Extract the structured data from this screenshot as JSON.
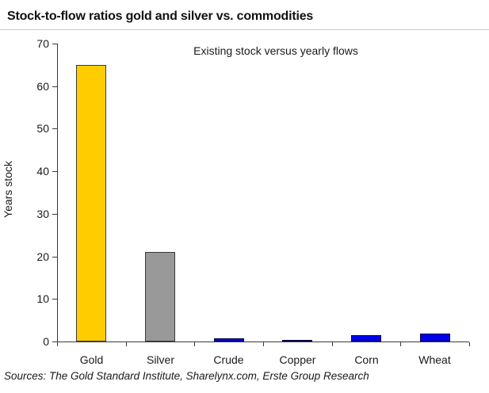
{
  "header": {
    "title": "Stock-to-flow ratios gold and silver vs. commodities"
  },
  "chart_data": {
    "type": "bar",
    "title": "Stock-to-flow ratios gold and silver vs. commodities",
    "annotation": "Existing stock versus yearly flows",
    "categories": [
      "Gold",
      "Silver",
      "Crude",
      "Copper",
      "Corn",
      "Wheat"
    ],
    "values": [
      65,
      21,
      0.7,
      0.4,
      1.5,
      1.8
    ],
    "bar_colors": [
      "#FFCC00",
      "#999999",
      "#0000EE",
      "#0000EE",
      "#0000EE",
      "#0000EE"
    ],
    "bar_border_colors": [
      "#3a3a3a",
      "#3a3a3a",
      "#000044",
      "#000044",
      "#000044",
      "#000044"
    ],
    "xlabel": "",
    "ylabel": "Years stock",
    "ylim": [
      0,
      70
    ],
    "yticks": [
      0,
      10,
      20,
      30,
      40,
      50,
      60,
      70
    ],
    "grid": false,
    "legend": false,
    "axis_color": "#3a3a3a"
  },
  "footer": {
    "sources": "Sources: The Gold Standard Institute, Sharelynx.com, Erste Group Research"
  }
}
